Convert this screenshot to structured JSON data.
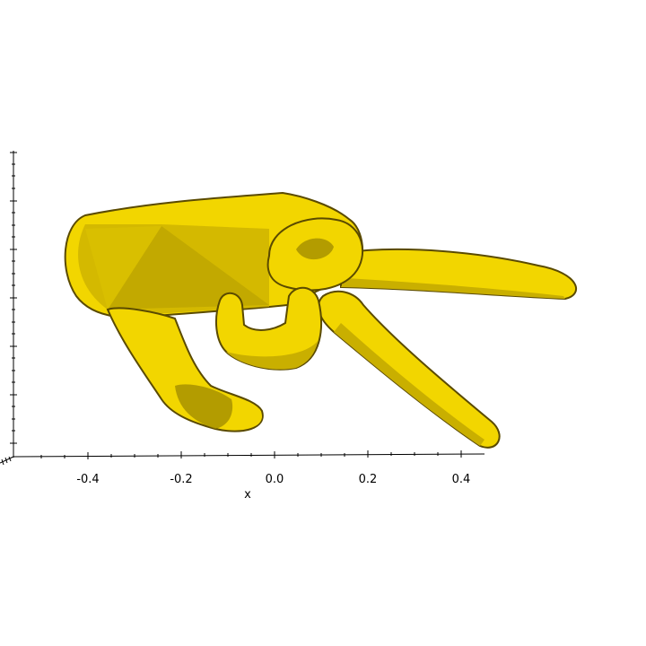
{
  "axes": {
    "x_label": "x",
    "x_ticks": [
      "-0.4",
      "-0.2",
      "0.0",
      "0.2",
      "0.4"
    ]
  },
  "colors": {
    "mesh_fill": "#f2d600",
    "mesh_shadow": "#b59e00",
    "mesh_outline": "#5a4a00",
    "axis": "#000000"
  }
}
